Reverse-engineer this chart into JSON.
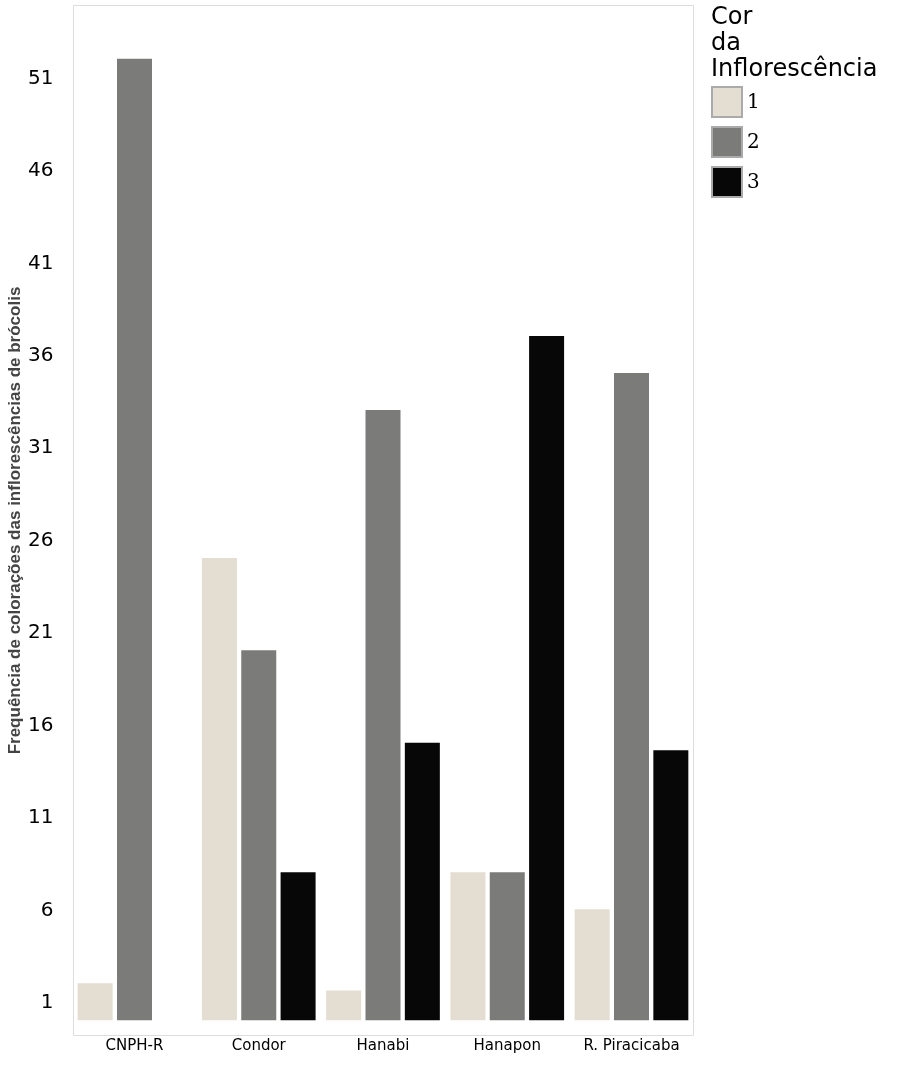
{
  "chart_data": {
    "type": "bar",
    "ylabel": "Frequência de colorações das inflorescências de brócolis",
    "legend_title": "Cor da Inflorescência",
    "categories": [
      "CNPH-R",
      "Condor",
      "Hanabi",
      "Hanapon",
      "R. Piracicaba"
    ],
    "series": [
      {
        "name": "1",
        "color": "#e3ddd2",
        "values": [
          2,
          25,
          1.6,
          8,
          6
        ]
      },
      {
        "name": "2",
        "color": "#7b7b7a",
        "values": [
          52,
          20,
          33,
          8,
          35
        ]
      },
      {
        "name": "3",
        "color": "#070707",
        "values": [
          null,
          8,
          15,
          37,
          14.6
        ]
      }
    ],
    "ylim": [
      -0.8,
      54.9
    ],
    "yticks": [
      1,
      6,
      11,
      16,
      21,
      26,
      31,
      36,
      41,
      46,
      51
    ],
    "grid": false,
    "legend": "right"
  }
}
